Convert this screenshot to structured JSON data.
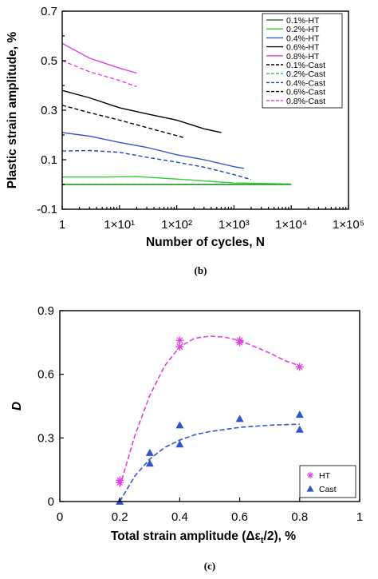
{
  "chart_data": [
    {
      "type": "line",
      "caption": "(b)",
      "xlabel": "Number of cycles, N",
      "ylabel": "Plastic strain amplitude, %",
      "xscale": "log",
      "xlim": [
        1,
        100000
      ],
      "ylim": [
        -0.1,
        0.7
      ],
      "x_tick_labels": [
        "1",
        "1×10¹",
        "1×10²",
        "1×10³",
        "1×10⁴",
        "1×10⁵"
      ],
      "y_tick_labels": [
        "-0.1",
        "0.1",
        "0.3",
        "0.5",
        "0.7"
      ],
      "y_ticks": [
        -0.1,
        0.1,
        0.3,
        0.5,
        0.7
      ],
      "legend_position": "top-right",
      "series": [
        {
          "name": "0.1%-HT",
          "color": "#2e7d32",
          "dash": "solid",
          "x": [
            1,
            10,
            100,
            1000,
            10000
          ],
          "y": [
            0,
            0,
            0,
            0,
            0
          ]
        },
        {
          "name": "0.2%-HT",
          "color": "#33cc33",
          "dash": "solid",
          "x": [
            1,
            5,
            20,
            100,
            1000,
            10000
          ],
          "y": [
            0.03,
            0.03,
            0.032,
            0.022,
            0.006,
            0.002
          ]
        },
        {
          "name": "0.4%-HT",
          "color": "#3355cc",
          "dash": "solid",
          "x": [
            1,
            3,
            10,
            30,
            100,
            300,
            1000,
            1500
          ],
          "y": [
            0.21,
            0.195,
            0.17,
            0.15,
            0.12,
            0.1,
            0.072,
            0.065
          ]
        },
        {
          "name": "0.6%-HT",
          "color": "#000000",
          "dash": "solid",
          "x": [
            1,
            3,
            10,
            30,
            100,
            300,
            600
          ],
          "y": [
            0.38,
            0.35,
            0.31,
            0.285,
            0.26,
            0.225,
            0.21
          ]
        },
        {
          "name": "0.8%-HT",
          "color": "#e040e0",
          "dash": "solid",
          "x": [
            1,
            3,
            10,
            20
          ],
          "y": [
            0.57,
            0.51,
            0.47,
            0.45
          ]
        },
        {
          "name": "0.1%-Cast",
          "color": "#000000",
          "dash": "dashed",
          "x": [
            1,
            10,
            100,
            1000,
            10000
          ],
          "y": [
            0,
            0,
            0,
            0,
            0
          ]
        },
        {
          "name": "0.2%-Cast",
          "color": "#33cc33",
          "dash": "dashed",
          "x": [
            1,
            10,
            100,
            1000,
            10000
          ],
          "y": [
            0,
            0,
            0,
            0,
            0
          ]
        },
        {
          "name": "0.4%-Cast",
          "color": "#2244bb",
          "dash": "dashed",
          "x": [
            1,
            3,
            10,
            30,
            100,
            300,
            1000,
            2000
          ],
          "y": [
            0.135,
            0.137,
            0.13,
            0.11,
            0.09,
            0.07,
            0.04,
            0.02
          ]
        },
        {
          "name": "0.6%-Cast",
          "color": "#000000",
          "dash": "dashed",
          "x": [
            1,
            3,
            10,
            30,
            130
          ],
          "y": [
            0.32,
            0.29,
            0.26,
            0.23,
            0.19
          ]
        },
        {
          "name": "0.8%-Cast",
          "color": "#e040e0",
          "dash": "dashed",
          "x": [
            1,
            3,
            10,
            20
          ],
          "y": [
            0.5,
            0.455,
            0.42,
            0.395
          ]
        }
      ]
    },
    {
      "type": "scatter",
      "caption": "(c)",
      "xlabel": "Total strain amplitude (Δε",
      "xlabel_sub": "t",
      "xlabel_tail": "/2), %",
      "ylabel": "D",
      "xlim": [
        0,
        1
      ],
      "ylim": [
        0,
        0.9
      ],
      "x_tick_labels": [
        "0",
        "0.2",
        "0.4",
        "0.6",
        "0.8",
        "1"
      ],
      "x_ticks": [
        0,
        0.2,
        0.4,
        0.6,
        0.8,
        1
      ],
      "y_tick_labels": [
        "0",
        "0.3",
        "0.6",
        "0.9"
      ],
      "y_ticks": [
        0,
        0.3,
        0.6,
        0.9
      ],
      "legend_position": "bottom-right",
      "series": [
        {
          "name": "HT",
          "color": "#e040e0",
          "marker": "asterisk",
          "x": [
            0.2,
            0.2,
            0.4,
            0.4,
            0.6,
            0.6,
            0.8
          ],
          "y": [
            0.09,
            0.1,
            0.73,
            0.76,
            0.76,
            0.75,
            0.635
          ],
          "fit_x": [
            0.2,
            0.25,
            0.3,
            0.35,
            0.4,
            0.45,
            0.5,
            0.55,
            0.6,
            0.65,
            0.7,
            0.75,
            0.8
          ],
          "fit_y": [
            0.07,
            0.31,
            0.5,
            0.64,
            0.73,
            0.77,
            0.78,
            0.775,
            0.76,
            0.73,
            0.7,
            0.665,
            0.64
          ]
        },
        {
          "name": "Cast",
          "color": "#3355cc",
          "marker": "triangle",
          "x": [
            0.2,
            0.3,
            0.3,
            0.4,
            0.4,
            0.6,
            0.8,
            0.8
          ],
          "y": [
            0.0,
            0.18,
            0.23,
            0.27,
            0.36,
            0.39,
            0.34,
            0.41
          ],
          "fit_x": [
            0.2,
            0.25,
            0.3,
            0.35,
            0.4,
            0.45,
            0.5,
            0.6,
            0.7,
            0.8
          ],
          "fit_y": [
            0.0,
            0.12,
            0.2,
            0.255,
            0.29,
            0.315,
            0.33,
            0.35,
            0.36,
            0.365
          ]
        }
      ]
    }
  ]
}
